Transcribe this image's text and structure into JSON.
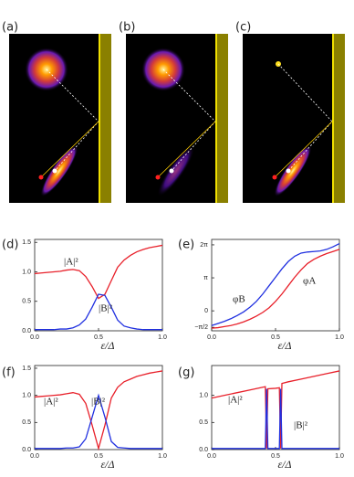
{
  "figure_labels": [
    "(a)",
    "(b)",
    "(c)"
  ],
  "chart_data": [
    {
      "type": "line",
      "label": "(d)",
      "xlabel": "ε/Δ",
      "x": [
        0,
        0.05,
        0.1,
        0.15,
        0.2,
        0.25,
        0.3,
        0.35,
        0.4,
        0.45,
        0.5,
        0.55,
        0.6,
        0.65,
        0.7,
        0.75,
        0.8,
        0.85,
        0.9,
        0.95,
        1
      ],
      "xlim": [
        0,
        1
      ],
      "xticks": [
        {
          "value": 0,
          "label": "0.0"
        },
        0.5,
        {
          "value": 1,
          "label": "1.0"
        }
      ],
      "ylim": [
        0,
        1.55
      ],
      "yticks": [
        {
          "value": 0,
          "label": "0.0"
        },
        0.5,
        {
          "value": 1,
          "label": "1.0"
        },
        1.5
      ],
      "series": [
        {
          "name": "|A|²",
          "color": "#e8202a",
          "values": [
            0.97,
            0.98,
            0.99,
            1.0,
            1.01,
            1.03,
            1.04,
            1.02,
            0.92,
            0.75,
            0.55,
            0.62,
            0.85,
            1.08,
            1.2,
            1.28,
            1.34,
            1.38,
            1.41,
            1.43,
            1.45
          ]
        },
        {
          "name": "|B|²",
          "color": "#2030e0",
          "values": [
            0.02,
            0.02,
            0.02,
            0.02,
            0.03,
            0.03,
            0.05,
            0.1,
            0.2,
            0.4,
            0.62,
            0.6,
            0.4,
            0.18,
            0.08,
            0.05,
            0.03,
            0.02,
            0.02,
            0.02,
            0.02
          ]
        }
      ]
    },
    {
      "type": "line",
      "label": "(e)",
      "xlabel": "ε/Δ",
      "x": [
        0,
        0.05,
        0.1,
        0.15,
        0.2,
        0.25,
        0.3,
        0.35,
        0.4,
        0.45,
        0.5,
        0.55,
        0.6,
        0.65,
        0.7,
        0.75,
        0.8,
        0.85,
        0.9,
        0.95,
        1
      ],
      "xlim": [
        0,
        1
      ],
      "xticks": [
        {
          "value": 0,
          "label": "0.0"
        },
        0.5,
        {
          "value": 1,
          "label": "1.0"
        }
      ],
      "ylim": [
        -1.9,
        6.8
      ],
      "yticks": [
        {
          "value": -1.5708,
          "label": "−π/2"
        },
        0,
        {
          "value": 3.1416,
          "label": "π"
        },
        {
          "value": 6.2832,
          "label": "2π"
        }
      ],
      "series": [
        {
          "name": "φB",
          "color": "#2030e0",
          "values": [
            -1.4,
            -1.2,
            -1.0,
            -0.75,
            -0.45,
            -0.1,
            0.35,
            0.9,
            1.6,
            2.4,
            3.2,
            4.0,
            4.7,
            5.2,
            5.5,
            5.6,
            5.65,
            5.7,
            5.85,
            6.1,
            6.4
          ]
        },
        {
          "name": "φA",
          "color": "#e8202a",
          "values": [
            -1.65,
            -1.6,
            -1.5,
            -1.4,
            -1.25,
            -1.05,
            -0.8,
            -0.5,
            -0.15,
            0.3,
            0.9,
            1.6,
            2.4,
            3.2,
            3.9,
            4.5,
            4.9,
            5.2,
            5.45,
            5.65,
            5.85
          ]
        }
      ]
    },
    {
      "type": "line",
      "label": "(f)",
      "xlabel": "ε/Δ",
      "x": [
        0,
        0.05,
        0.1,
        0.15,
        0.2,
        0.25,
        0.3,
        0.35,
        0.4,
        0.45,
        0.5,
        0.55,
        0.6,
        0.65,
        0.7,
        0.75,
        0.8,
        0.85,
        0.9,
        0.95,
        1
      ],
      "xlim": [
        0,
        1
      ],
      "xticks": [
        {
          "value": 0,
          "label": "0.0"
        },
        0.5,
        {
          "value": 1,
          "label": "1.0"
        }
      ],
      "ylim": [
        0,
        1.55
      ],
      "yticks": [
        {
          "value": 0,
          "label": "0.0"
        },
        0.5,
        {
          "value": 1,
          "label": "1.0"
        },
        1.5
      ],
      "series": [
        {
          "name": "|A|²",
          "color": "#e8202a",
          "values": [
            0.97,
            0.98,
            0.99,
            1.0,
            1.01,
            1.03,
            1.05,
            1.02,
            0.85,
            0.45,
            0.02,
            0.45,
            0.95,
            1.15,
            1.25,
            1.3,
            1.35,
            1.38,
            1.41,
            1.43,
            1.45
          ]
        },
        {
          "name": "|B|²",
          "color": "#2030e0",
          "values": [
            0.02,
            0.02,
            0.02,
            0.02,
            0.02,
            0.03,
            0.03,
            0.05,
            0.2,
            0.6,
            1.0,
            0.6,
            0.15,
            0.04,
            0.03,
            0.02,
            0.02,
            0.02,
            0.02,
            0.02,
            0.02
          ]
        }
      ]
    },
    {
      "type": "line",
      "label": "(g)",
      "xlabel": "ε/Δ",
      "x": [
        0,
        0.1,
        0.2,
        0.3,
        0.4,
        0.42,
        0.43,
        0.44,
        0.5,
        0.53,
        0.54,
        0.55,
        0.6,
        0.7,
        0.8,
        0.9,
        1
      ],
      "xlim": [
        0,
        1
      ],
      "xticks": [
        {
          "value": 0,
          "label": "0.0"
        },
        0.5,
        {
          "value": 1,
          "label": "1.0"
        }
      ],
      "ylim": [
        0,
        1.55
      ],
      "yticks": [
        {
          "value": 0,
          "label": "0.0"
        },
        0.5,
        {
          "value": 1,
          "label": "1.0"
        }
      ],
      "series": [
        {
          "name": "|A|²",
          "color": "#e8202a",
          "values": [
            0.95,
            1.0,
            1.05,
            1.1,
            1.15,
            1.16,
            0.02,
            1.12,
            1.13,
            1.14,
            0.02,
            1.22,
            1.25,
            1.3,
            1.35,
            1.4,
            1.45
          ]
        },
        {
          "name": "|B|²",
          "color": "#2030e0",
          "values": [
            0.02,
            0.02,
            0.02,
            0.02,
            0.02,
            0.02,
            1.12,
            0.02,
            0.02,
            0.02,
            1.12,
            0.02,
            0.02,
            0.02,
            0.02,
            0.02,
            0.02
          ]
        }
      ]
    }
  ]
}
